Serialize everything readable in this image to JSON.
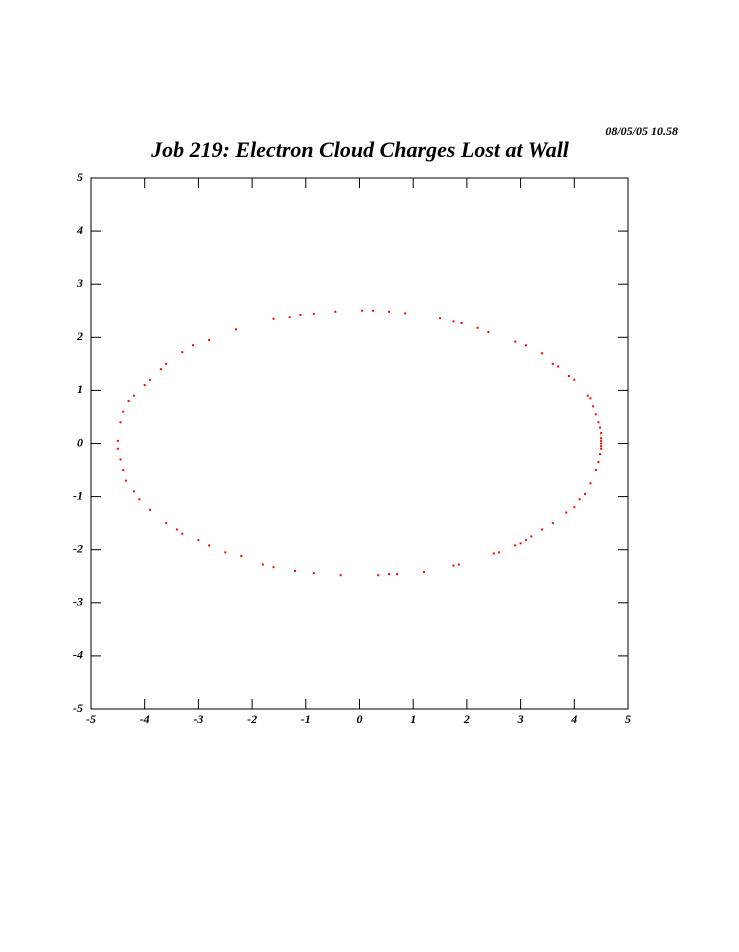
{
  "chart_data": {
    "type": "scatter",
    "title": "Job 219: Electron Cloud Charges Lost at Wall",
    "date": "08/05/05   10.58",
    "color": "#ff0000",
    "xlim": [
      -5,
      5
    ],
    "ylim": [
      -5,
      5
    ],
    "xticks": [
      -5,
      -4,
      -3,
      -2,
      -1,
      0,
      1,
      2,
      3,
      4,
      5
    ],
    "yticks": [
      -5,
      -4,
      -3,
      -2,
      -1,
      0,
      1,
      2,
      3,
      4,
      5
    ],
    "x": [
      -4.45,
      -4.4,
      -4.3,
      -4.2,
      -4.0,
      -3.9,
      -3.7,
      -3.6,
      -3.3,
      -3.1,
      -2.8,
      -2.3,
      -1.6,
      -1.3,
      -1.1,
      -0.85,
      -0.45,
      0.05,
      0.25,
      0.55,
      0.85,
      1.5,
      1.75,
      1.9,
      2.2,
      2.4,
      2.9,
      3.1,
      3.4,
      3.6,
      3.7,
      3.9,
      4.0,
      4.25,
      4.3,
      4.35,
      4.4,
      4.45,
      4.48,
      4.5,
      4.5,
      4.5,
      4.5,
      -4.5,
      -4.5,
      -4.45,
      -4.4,
      -4.35,
      -4.2,
      -4.1,
      -3.9,
      -3.6,
      -3.4,
      -3.3,
      -3.0,
      -2.8,
      -2.5,
      -2.2,
      -1.8,
      -1.6,
      -1.2,
      -0.85,
      -0.35,
      0.35,
      0.55,
      0.7,
      1.2,
      1.75,
      1.85,
      2.5,
      2.6,
      2.9,
      3.0,
      3.1,
      3.2,
      3.4,
      3.6,
      3.85,
      4.0,
      4.1,
      4.2,
      4.3,
      4.4,
      4.45,
      4.48,
      4.5,
      4.5
    ],
    "y": [
      0.4,
      0.6,
      0.8,
      0.9,
      1.1,
      1.2,
      1.4,
      1.5,
      1.72,
      1.85,
      1.95,
      2.15,
      2.35,
      2.38,
      2.42,
      2.44,
      2.48,
      2.5,
      2.5,
      2.48,
      2.45,
      2.36,
      2.3,
      2.27,
      2.18,
      2.1,
      1.92,
      1.85,
      1.7,
      1.5,
      1.45,
      1.27,
      1.2,
      0.9,
      0.85,
      0.7,
      0.55,
      0.4,
      0.3,
      0.2,
      0.1,
      0.05,
      0,
      0.05,
      -0.1,
      -0.3,
      -0.5,
      -0.7,
      -0.9,
      -1.05,
      -1.25,
      -1.5,
      -1.62,
      -1.7,
      -1.82,
      -1.92,
      -2.05,
      -2.12,
      -2.28,
      -2.33,
      -2.4,
      -2.44,
      -2.48,
      -2.48,
      -2.46,
      -2.46,
      -2.42,
      -2.3,
      -2.28,
      -2.07,
      -2.05,
      -1.92,
      -1.88,
      -1.82,
      -1.75,
      -1.62,
      -1.5,
      -1.3,
      -1.2,
      -1.05,
      -0.95,
      -0.75,
      -0.5,
      -0.35,
      -0.2,
      -0.1,
      -0.05
    ]
  }
}
